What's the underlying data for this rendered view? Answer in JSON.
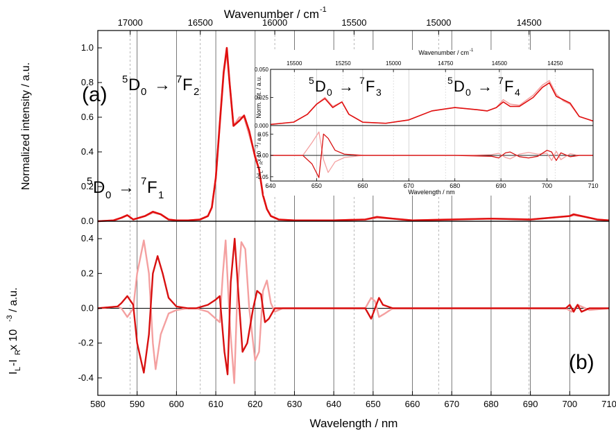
{
  "chart_data": [
    {
      "type": "line",
      "panel_label": "(a)",
      "top_axis": {
        "label_main": "Wavenumber / cm",
        "label_sup": "-1",
        "ticks": [
          17000,
          16500,
          16000,
          15500,
          15000,
          14500
        ],
        "tick_labels": [
          "17000",
          "16500",
          "16000",
          "15500",
          "15000",
          "14500"
        ]
      },
      "ylabel": "Normalized intensity / a.u.",
      "xlim": [
        580,
        710
      ],
      "ylim": [
        0,
        1.1
      ],
      "yticks": [
        0.0,
        0.2,
        0.4,
        0.6,
        0.8,
        1.0
      ],
      "ytick_labels": [
        "0.0",
        "0.2",
        "0.4",
        "0.6",
        "0.8",
        "1.0"
      ],
      "annotations": [
        {
          "sup1": "5",
          "main1": "D",
          "sub1": "0",
          "arrow": "→",
          "sup2": "7",
          "main2": "F",
          "sub2": "2"
        },
        {
          "sup1": "5",
          "main1": "D",
          "sub1": "0",
          "arrow": "→",
          "sup2": "7",
          "main2": "F",
          "sub2": "1"
        }
      ],
      "series": [
        {
          "color": "#f4a0a0",
          "x": [
            580,
            584,
            586,
            587.5,
            589,
            592,
            594,
            596,
            598,
            600,
            603,
            606,
            608,
            609,
            610,
            611,
            612,
            612.8,
            613.5,
            614.5,
            616,
            617.2,
            618.5,
            620,
            621,
            622,
            623,
            624,
            626,
            630,
            640,
            648,
            651,
            655,
            660,
            670,
            680,
            690,
            700,
            701,
            704,
            707,
            710
          ],
          "y": [
            0,
            0.005,
            0.02,
            0.035,
            0.01,
            0.03,
            0.05,
            0.04,
            0.01,
            0.005,
            0.005,
            0.01,
            0.03,
            0.08,
            0.25,
            0.55,
            0.85,
            0.98,
            0.8,
            0.55,
            0.6,
            0.6,
            0.5,
            0.38,
            0.3,
            0.15,
            0.07,
            0.03,
            0.01,
            0.005,
            0.005,
            0.01,
            0.02,
            0.015,
            0.005,
            0.01,
            0.015,
            0.01,
            0.03,
            0.035,
            0.025,
            0.01,
            0.005
          ]
        },
        {
          "color": "#e01010",
          "x": [
            580,
            584,
            586,
            587.5,
            589,
            592,
            594,
            596,
            598,
            600,
            603,
            606,
            608,
            609,
            610,
            611,
            612,
            612.8,
            613.5,
            614.5,
            616,
            617.2,
            618.5,
            620,
            621,
            622,
            623,
            624,
            626,
            630,
            640,
            648,
            651,
            655,
            660,
            670,
            680,
            690,
            700,
            701,
            704,
            707,
            710
          ],
          "y": [
            0,
            0.005,
            0.02,
            0.035,
            0.01,
            0.03,
            0.055,
            0.04,
            0.01,
            0.005,
            0.005,
            0.01,
            0.03,
            0.08,
            0.25,
            0.56,
            0.86,
            1.0,
            0.8,
            0.55,
            0.58,
            0.61,
            0.52,
            0.37,
            0.3,
            0.15,
            0.07,
            0.03,
            0.01,
            0.005,
            0.005,
            0.01,
            0.025,
            0.015,
            0.005,
            0.01,
            0.015,
            0.01,
            0.03,
            0.04,
            0.025,
            0.01,
            0.005
          ]
        }
      ]
    },
    {
      "type": "line",
      "panel_label": "(b)",
      "xlabel": "Wavelength / nm",
      "ylabel_main": "I",
      "ylabel_sub1": "L",
      "ylabel_mid": "-I",
      "ylabel_sub2": "R",
      "ylabel_rest": " x 10",
      "ylabel_sup": "-3",
      "ylabel_end": " / a.u.",
      "xlim": [
        580,
        710
      ],
      "ylim": [
        -0.5,
        0.5
      ],
      "xticks": [
        580,
        590,
        600,
        610,
        620,
        630,
        640,
        650,
        660,
        670,
        680,
        690,
        700,
        710
      ],
      "xtick_labels": [
        "580",
        "590",
        "600",
        "610",
        "620",
        "630",
        "640",
        "650",
        "660",
        "670",
        "680",
        "690",
        "700",
        "710"
      ],
      "yticks": [
        -0.4,
        -0.2,
        0.0,
        0.2,
        0.4
      ],
      "ytick_labels": [
        "-0.4",
        "-0.2",
        "0.0",
        "0.2",
        "0.4"
      ],
      "series": [
        {
          "color": "#f4a0a0",
          "x": [
            580,
            585,
            586,
            587.5,
            589,
            590,
            591.7,
            593,
            594,
            594.7,
            596,
            598,
            600,
            603,
            605,
            608,
            610,
            611,
            611.8,
            612.5,
            613.6,
            614.7,
            615.5,
            616.5,
            617.5,
            618.5,
            620,
            621,
            622,
            623,
            624,
            625,
            627,
            648,
            649.5,
            650.5,
            651.5,
            653,
            655,
            699,
            700.5,
            702,
            703,
            705,
            710
          ],
          "y": [
            0,
            0.01,
            0.0,
            -0.05,
            0.0,
            0.2,
            0.39,
            0.2,
            -0.2,
            -0.35,
            -0.15,
            -0.03,
            -0.01,
            0,
            0,
            -0.02,
            -0.06,
            -0.08,
            0.2,
            0.39,
            -0.1,
            -0.43,
            0.1,
            0.38,
            0.34,
            0.0,
            -0.3,
            -0.25,
            0.1,
            0.16,
            0.03,
            -0.02,
            0,
            0,
            0.06,
            0.04,
            -0.05,
            -0.03,
            0,
            0,
            -0.02,
            0.02,
            0.01,
            -0.01,
            0
          ]
        },
        {
          "color": "#d81010",
          "x": [
            580,
            585,
            586,
            587.5,
            589,
            590,
            591.7,
            593,
            594,
            595.2,
            596.5,
            598,
            600,
            603,
            605,
            608,
            610,
            611,
            612.2,
            613,
            613.8,
            614.8,
            615.7,
            616.8,
            618,
            619.5,
            620.5,
            621.5,
            622.5,
            623.5,
            625,
            627,
            648,
            649.5,
            651.5,
            652.5,
            655,
            699,
            700,
            701,
            702,
            703,
            705,
            710
          ],
          "y": [
            0,
            0.01,
            0.03,
            0.07,
            0.02,
            -0.2,
            -0.37,
            -0.15,
            0.2,
            0.3,
            0.2,
            0.06,
            0.01,
            0,
            0,
            0.02,
            0.05,
            0.07,
            -0.25,
            -0.38,
            0.15,
            0.4,
            0.1,
            -0.25,
            -0.2,
            0.0,
            0.1,
            0.08,
            -0.08,
            -0.06,
            0,
            0,
            0,
            -0.06,
            0.06,
            0.02,
            0,
            0,
            0.02,
            -0.02,
            0.02,
            -0.02,
            0,
            0
          ]
        }
      ]
    },
    {
      "type": "line",
      "inset": true,
      "top_axis": {
        "label_main": "Wavenumber / cm",
        "label_sup": "-1",
        "ticks": [
          15500,
          15250,
          15000,
          14750,
          14500,
          14250
        ],
        "tick_labels": [
          "15500",
          "15250",
          "15000",
          "14750",
          "14500",
          "14250"
        ]
      },
      "xlabel": "Wavelength / nm",
      "xlim": [
        640,
        710
      ],
      "xticks": [
        640,
        650,
        660,
        670,
        680,
        690,
        700,
        710
      ],
      "xtick_labels": [
        "640",
        "650",
        "660",
        "670",
        "680",
        "690",
        "700",
        "710"
      ],
      "upper": {
        "ylabel": "Norm. int. / a.u.",
        "ylim": [
          0,
          0.05
        ],
        "yticks": [
          0.0,
          0.025,
          0.05
        ],
        "ytick_labels": [
          "0.000",
          "0.025",
          "0.050"
        ],
        "annotations": [
          {
            "sup1": "5",
            "main1": "D",
            "sub1": "0",
            "arrow": "→",
            "sup2": "7",
            "main2": "F",
            "sub2": "3"
          },
          {
            "sup1": "5",
            "main1": "D",
            "sub1": "0",
            "arrow": "→",
            "sup2": "7",
            "main2": "F",
            "sub2": "4"
          }
        ],
        "series": [
          {
            "color": "#f4a0a0",
            "x": [
              640,
              645,
              648,
              650,
              651.8,
              653.5,
              655.5,
              657,
              660,
              665,
              670,
              675,
              680,
              685,
              687,
              689,
              690.5,
              692,
              694,
              697,
              699,
              700.5,
              702,
              703.5,
              705,
              707,
              710
            ],
            "y": [
              0.001,
              0.003,
              0.01,
              0.019,
              0.025,
              0.017,
              0.021,
              0.01,
              0.003,
              0.002,
              0.005,
              0.013,
              0.016,
              0.014,
              0.013,
              0.016,
              0.023,
              0.019,
              0.018,
              0.027,
              0.036,
              0.04,
              0.028,
              0.022,
              0.019,
              0.008,
              0.004
            ]
          },
          {
            "color": "#e01010",
            "x": [
              640,
              645,
              648,
              650,
              651.8,
              653.5,
              655.5,
              657,
              660,
              665,
              670,
              675,
              680,
              685,
              687,
              689,
              690.5,
              692,
              694,
              697,
              699,
              700.5,
              702,
              703.5,
              705,
              707,
              710
            ],
            "y": [
              0.001,
              0.003,
              0.01,
              0.019,
              0.024,
              0.016,
              0.021,
              0.01,
              0.003,
              0.002,
              0.005,
              0.013,
              0.016,
              0.014,
              0.013,
              0.016,
              0.021,
              0.017,
              0.017,
              0.025,
              0.034,
              0.038,
              0.026,
              0.023,
              0.02,
              0.008,
              0.004
            ]
          }
        ]
      },
      "lower": {
        "ylabel_main": "I",
        "ylabel_sub1": "L",
        "ylabel_mid": "-I",
        "ylabel_sub2": "R",
        "ylabel_rest": " x 10",
        "ylabel_sup": "-3",
        "ylabel_end": " / a.u.",
        "ylim": [
          -0.06,
          0.07
        ],
        "yticks": [
          -0.05,
          0.0,
          0.05
        ],
        "ytick_labels": [
          "-0.05",
          "0.00",
          "0.05"
        ],
        "series": [
          {
            "color": "#f4a0a0",
            "x": [
              640,
              647,
              649,
              650.5,
              651.5,
              652.5,
              654,
              656,
              660,
              670,
              680,
              688,
              689.5,
              691,
              692,
              694,
              696,
              698,
              700,
              701,
              702,
              703,
              705,
              707,
              710
            ],
            "y": [
              0,
              0,
              0.03,
              0.055,
              -0.01,
              -0.04,
              -0.015,
              -0.005,
              0,
              0,
              0,
              0.002,
              0.005,
              -0.005,
              -0.008,
              0.003,
              0.007,
              0.003,
              0.005,
              -0.012,
              0.01,
              -0.01,
              0.004,
              0,
              0
            ]
          },
          {
            "color": "#d81010",
            "x": [
              640,
              647,
              649,
              650.5,
              651.5,
              652.5,
              654,
              656,
              660,
              670,
              680,
              688,
              689.5,
              691,
              692,
              694,
              696,
              698,
              700,
              701,
              702,
              703,
              705,
              707,
              710
            ],
            "y": [
              0,
              0,
              -0.02,
              -0.052,
              0.05,
              0.04,
              0.012,
              0.003,
              0,
              0,
              0,
              -0.002,
              -0.006,
              0.006,
              0.008,
              -0.003,
              -0.006,
              -0.002,
              0.012,
              0.008,
              -0.012,
              0.006,
              -0.003,
              0,
              0
            ]
          }
        ]
      }
    }
  ]
}
